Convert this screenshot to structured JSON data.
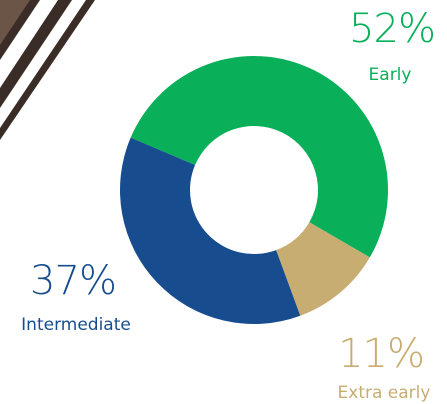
{
  "chart_data": {
    "type": "pie",
    "donut": true,
    "categories": [
      "Early",
      "Extra early",
      "Intermediate"
    ],
    "values": [
      52,
      11,
      37
    ],
    "value_labels": [
      "52%",
      "11%",
      "37%"
    ],
    "colors": [
      "#0aaf5a",
      "#c8ad72",
      "#174d8f"
    ]
  }
}
